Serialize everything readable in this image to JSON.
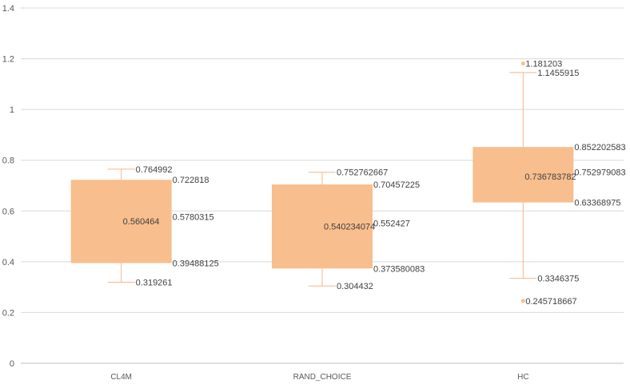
{
  "chart_data": {
    "type": "box",
    "title": "",
    "xlabel": "",
    "ylabel": "",
    "ylim": [
      0,
      1.4
    ],
    "yticks": [
      "0",
      "0.2",
      "0.4",
      "0.6",
      "0.8",
      "1",
      "1.2",
      "1.4"
    ],
    "grid": true,
    "colors": {
      "box": "#F8BE8E",
      "whisker": "#F5B68A",
      "grid": "#D9D9D9",
      "axis": "#BFBFBF"
    },
    "categories": [
      "CL4M",
      "RAND_CHOICE",
      "HC"
    ],
    "boxes": [
      {
        "category": "CL4M",
        "min": 0.319261,
        "q1": 0.39488125,
        "median": 0.5780315,
        "mean": 0.560464,
        "q3": 0.722818,
        "max": 0.764992,
        "labels": {
          "min": "0.319261",
          "q1": "0.39488125",
          "median": "0.5780315",
          "mean": "0.560464",
          "q3": "0.722818",
          "max": "0.764992"
        },
        "outliers": []
      },
      {
        "category": "RAND_CHOICE",
        "min": 0.304432,
        "q1": 0.373580083,
        "median": 0.552427,
        "mean": 0.540234074,
        "q3": 0.70457225,
        "max": 0.752762667,
        "labels": {
          "min": "0.304432",
          "q1": "0.373580083",
          "median": "0.552427",
          "mean": "0.540234074",
          "q3": "0.70457225",
          "max": "0.752762667"
        },
        "outliers": []
      },
      {
        "category": "HC",
        "min": 0.3346375,
        "q1": 0.63368975,
        "median": 0.752979083,
        "mean": 0.736783782,
        "q3": 0.852202583,
        "max": 1.1455915,
        "labels": {
          "min": "0.3346375",
          "q1": "0.63368975",
          "median": "0.752979083",
          "mean": "0.736783782",
          "q3": "0.852202583",
          "max": "1.1455915"
        },
        "outliers": [
          {
            "value": 1.181203,
            "label": "1.181203"
          },
          {
            "value": 0.245718667,
            "label": "0.245718667"
          }
        ]
      }
    ]
  }
}
